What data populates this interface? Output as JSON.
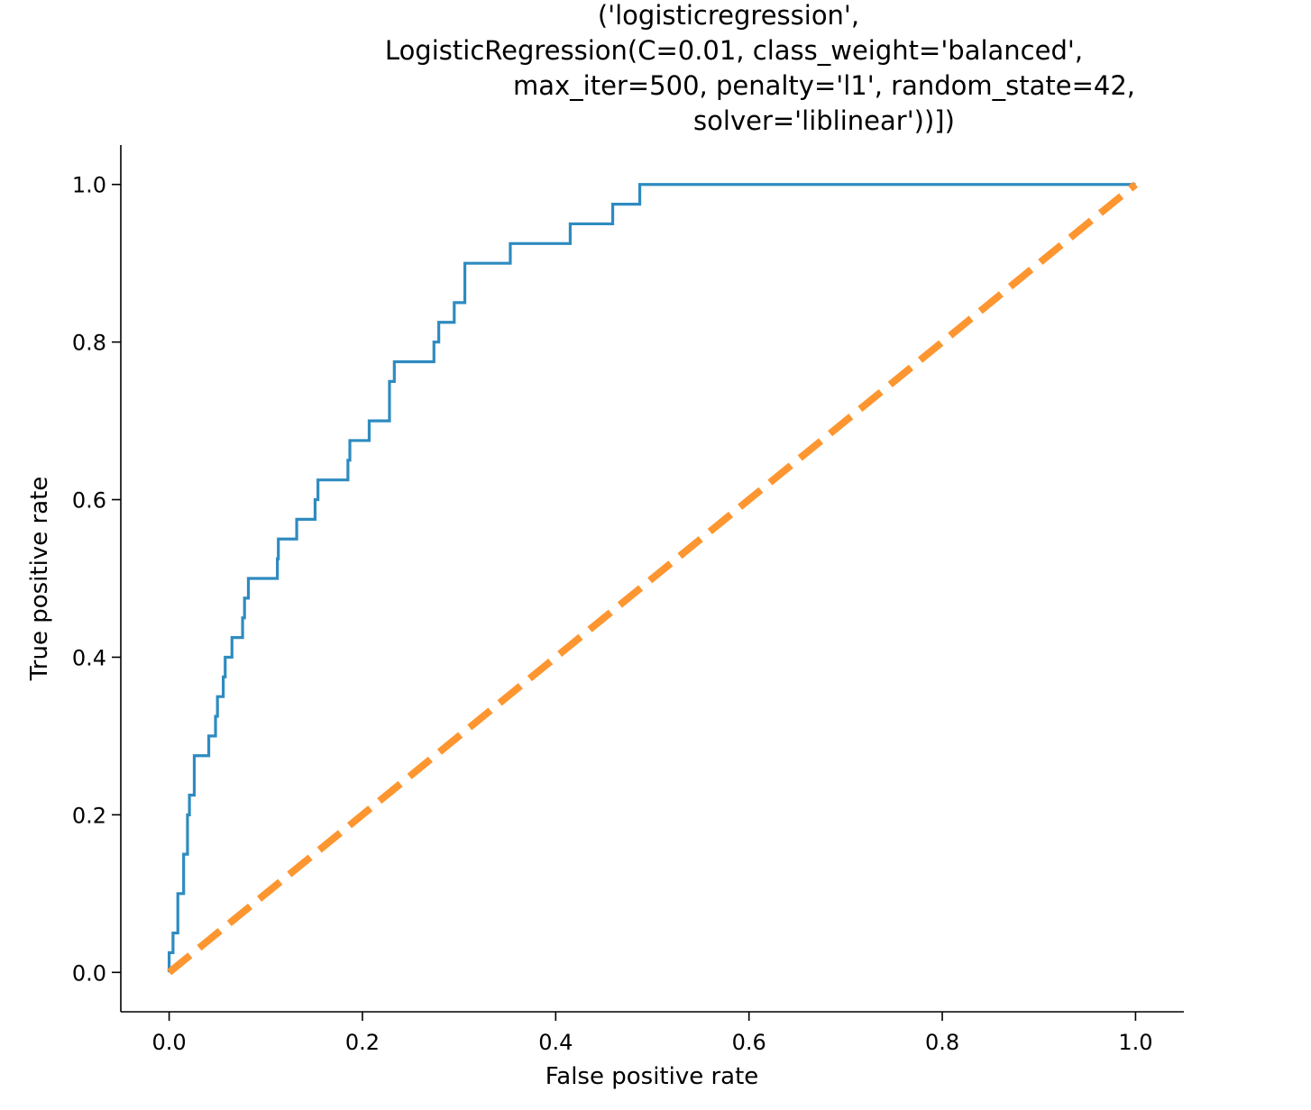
{
  "chart_data": {
    "type": "line",
    "title_lines": [
      "('logisticregression',",
      "LogisticRegression(C=0.01, class_weight='balanced',",
      "max_iter=500, penalty='l1', random_state=42,",
      "solver='liblinear'))])"
    ],
    "xlabel": "False positive rate",
    "ylabel": "True positive rate",
    "xlim": [
      -0.05,
      1.05
    ],
    "ylim": [
      -0.05,
      1.05
    ],
    "xticks": [
      0.0,
      0.2,
      0.4,
      0.6,
      0.8,
      1.0
    ],
    "xtick_labels": [
      "0.0",
      "0.2",
      "0.4",
      "0.6",
      "0.8",
      "1.0"
    ],
    "yticks": [
      0.0,
      0.2,
      0.4,
      0.6,
      0.8,
      1.0
    ],
    "ytick_labels": [
      "0.0",
      "0.2",
      "0.4",
      "0.6",
      "0.8",
      "1.0"
    ],
    "grid": false,
    "series": [
      {
        "color": "#2e8bc0",
        "style": "solid",
        "points": [
          [
            0.0,
            0.0
          ],
          [
            0.0,
            0.025
          ],
          [
            0.004,
            0.025
          ],
          [
            0.004,
            0.05
          ],
          [
            0.009,
            0.05
          ],
          [
            0.009,
            0.1
          ],
          [
            0.015,
            0.1
          ],
          [
            0.015,
            0.15
          ],
          [
            0.019,
            0.15
          ],
          [
            0.019,
            0.2
          ],
          [
            0.021,
            0.2
          ],
          [
            0.021,
            0.225
          ],
          [
            0.026,
            0.225
          ],
          [
            0.026,
            0.275
          ],
          [
            0.041,
            0.275
          ],
          [
            0.041,
            0.3
          ],
          [
            0.048,
            0.3
          ],
          [
            0.048,
            0.325
          ],
          [
            0.05,
            0.325
          ],
          [
            0.05,
            0.35
          ],
          [
            0.056,
            0.35
          ],
          [
            0.056,
            0.375
          ],
          [
            0.058,
            0.375
          ],
          [
            0.058,
            0.4
          ],
          [
            0.065,
            0.4
          ],
          [
            0.065,
            0.425
          ],
          [
            0.076,
            0.425
          ],
          [
            0.076,
            0.45
          ],
          [
            0.078,
            0.45
          ],
          [
            0.078,
            0.475
          ],
          [
            0.082,
            0.475
          ],
          [
            0.082,
            0.5
          ],
          [
            0.112,
            0.5
          ],
          [
            0.112,
            0.525
          ],
          [
            0.113,
            0.525
          ],
          [
            0.113,
            0.55
          ],
          [
            0.132,
            0.55
          ],
          [
            0.132,
            0.575
          ],
          [
            0.151,
            0.575
          ],
          [
            0.151,
            0.6
          ],
          [
            0.154,
            0.6
          ],
          [
            0.154,
            0.625
          ],
          [
            0.185,
            0.625
          ],
          [
            0.185,
            0.65
          ],
          [
            0.187,
            0.65
          ],
          [
            0.187,
            0.675
          ],
          [
            0.207,
            0.675
          ],
          [
            0.207,
            0.7
          ],
          [
            0.228,
            0.7
          ],
          [
            0.228,
            0.75
          ],
          [
            0.233,
            0.75
          ],
          [
            0.233,
            0.775
          ],
          [
            0.274,
            0.775
          ],
          [
            0.274,
            0.8
          ],
          [
            0.279,
            0.8
          ],
          [
            0.279,
            0.825
          ],
          [
            0.295,
            0.825
          ],
          [
            0.295,
            0.85
          ],
          [
            0.306,
            0.85
          ],
          [
            0.306,
            0.9
          ],
          [
            0.353,
            0.9
          ],
          [
            0.353,
            0.925
          ],
          [
            0.415,
            0.925
          ],
          [
            0.415,
            0.95
          ],
          [
            0.459,
            0.95
          ],
          [
            0.459,
            0.975
          ],
          [
            0.487,
            0.975
          ],
          [
            0.487,
            1.0
          ],
          [
            1.0,
            1.0
          ]
        ]
      },
      {
        "color": "#fd9630",
        "style": "dashed",
        "points": [
          [
            0.0,
            0.0
          ],
          [
            1.0,
            1.0
          ]
        ]
      }
    ]
  }
}
